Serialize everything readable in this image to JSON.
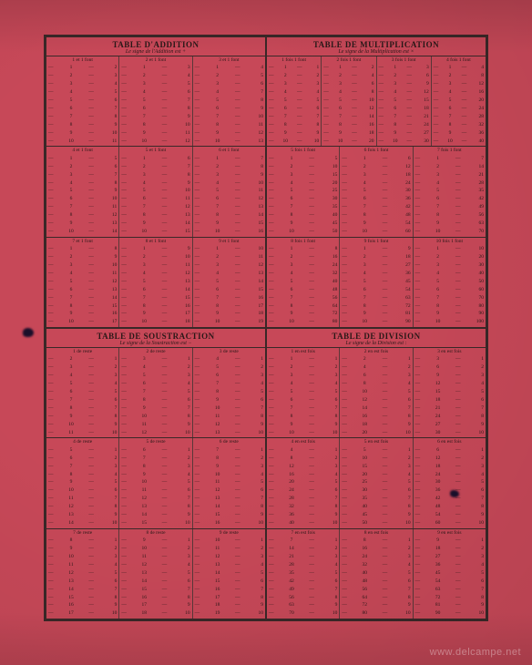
{
  "document": {
    "background_color": "#c74858",
    "ink_color": "#2a1818",
    "border_color": "#3a2828"
  },
  "watermark": "www.delcampe.net",
  "sections": {
    "addition": {
      "title": "TABLE D'ADDITION",
      "subtitle": "Le signe de l'Addition est +",
      "head_word": "font",
      "op_word": "et",
      "blocks": [
        {
          "cols": [
            1,
            2,
            3
          ],
          "rows_from": 1,
          "rows_to": 10
        },
        {
          "cols": [
            4,
            5,
            6
          ],
          "rows_from": 1,
          "rows_to": 10
        },
        {
          "cols": [
            7,
            8,
            9
          ],
          "rows_from": 1,
          "rows_to": 10
        }
      ]
    },
    "multiplication": {
      "title": "TABLE DE MULTIPLICATION",
      "subtitle": "Le signe de la Multiplication est ×",
      "head_word": "font",
      "op_word": "fois",
      "blocks": [
        {
          "cols": [
            1,
            2,
            3,
            4
          ],
          "rows_from": 1,
          "rows_to": 10
        },
        {
          "cols": [
            5,
            6,
            7
          ],
          "rows_from": 1,
          "rows_to": 10
        },
        {
          "cols": [
            8,
            9,
            10
          ],
          "rows_from": 1,
          "rows_to": 10
        }
      ]
    },
    "subtraction": {
      "title": "TABLE DE SOUSTRACTION",
      "subtitle": "Le signe de la Soustraction est −",
      "head_word": "reste",
      "op_word": "de",
      "blocks": [
        {
          "cols": [
            1,
            2,
            3
          ],
          "rows_to": 10
        },
        {
          "cols": [
            4,
            5,
            6
          ],
          "rows_to": 10
        },
        {
          "cols": [
            7,
            8,
            9
          ],
          "rows_to": 10
        }
      ]
    },
    "division": {
      "title": "TABLE DE DIVISION",
      "subtitle": "Le signe de la Division est :",
      "head_word": "fois",
      "op_word": "en",
      "blocks": [
        {
          "cols": [
            1,
            2,
            3
          ],
          "rows_to": 10
        },
        {
          "cols": [
            4,
            5,
            6
          ],
          "rows_to": 10
        },
        {
          "cols": [
            7,
            8,
            9
          ],
          "rows_to": 10
        }
      ]
    }
  }
}
